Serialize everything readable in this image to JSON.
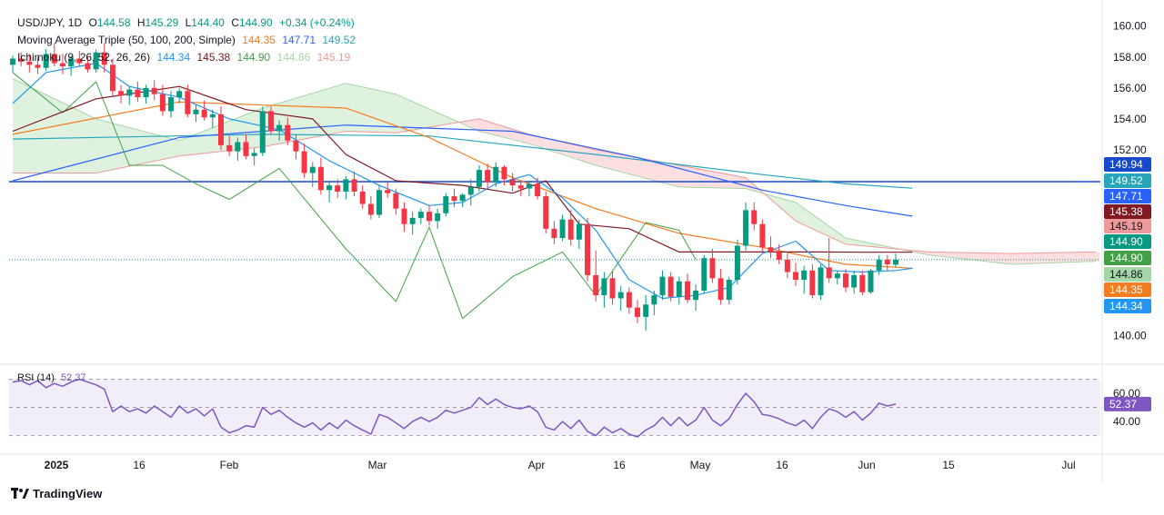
{
  "legend": {
    "symbol": "USD/JPY, 1D",
    "o_label": "O",
    "o_value": "144.58",
    "h_label": "H",
    "h_value": "145.29",
    "l_label": "L",
    "l_value": "144.40",
    "c_label": "C",
    "c_value": "144.90",
    "change": "+0.34 (+0.24%)",
    "ma_label": "Moving Average Triple (50, 100, 200, Simple)",
    "ma_values": [
      "144.35",
      "147.71",
      "149.52"
    ],
    "ichi_label": "Ichimoku (9, 26, 52, 26, 26)",
    "ichi_values": [
      "144.34",
      "145.38",
      "144.90",
      "144.86",
      "145.19"
    ],
    "rsi_label": "RSI (14)",
    "rsi_value": "52.37"
  },
  "colors": {
    "up": "#089981",
    "down": "#F23645",
    "ma50": "#F57C1F",
    "ma100": "#2962FF",
    "ma200": "#26A6BA",
    "tenkan": "#2196F3",
    "kijun": "#801922",
    "chikou": "#43A047",
    "span_a": "#A5D6A7",
    "span_b": "#EF9A9A",
    "hline": "#1848CC",
    "rsi": "#7E57C2"
  },
  "brand": "TradingView",
  "chart_data": {
    "type": "candlestick",
    "title": "USD/JPY, 1D",
    "price_axis": {
      "ylim": [
        138.2,
        161.1
      ],
      "ticks": [
        "160.00",
        "158.00",
        "156.00",
        "154.00",
        "152.00",
        "144.00",
        "140.00"
      ]
    },
    "x_axis": {
      "labels": [
        "2025",
        "16",
        "Feb",
        "Mar",
        "Apr",
        "16",
        "May",
        "16",
        "Jun",
        "15",
        "Jul"
      ]
    },
    "horizontal_line": 149.94,
    "last_close": 144.9,
    "price_badges": [
      {
        "value": "149.94",
        "color": "#1848CC"
      },
      {
        "value": "149.52",
        "color": "#26A6BA"
      },
      {
        "value": "147.71",
        "color": "#2962FF"
      },
      {
        "value": "145.38",
        "color": "#801922"
      },
      {
        "value": "145.19",
        "color": "#EF9A9A"
      },
      {
        "value": "144.90",
        "color": "#089981"
      },
      {
        "value": "144.90",
        "color": "#43A047"
      },
      {
        "value": "144.86",
        "color": "#A5D6A7"
      },
      {
        "value": "144.35",
        "color": "#F57C1F"
      },
      {
        "value": "144.34",
        "color": "#2196F3"
      }
    ],
    "candles": [
      [
        157.5,
        158.1,
        157.0,
        157.9
      ],
      [
        157.9,
        158.3,
        157.4,
        157.7
      ],
      [
        157.7,
        158.2,
        157.0,
        157.5
      ],
      [
        157.5,
        158.0,
        156.9,
        157.3
      ],
      [
        157.3,
        158.5,
        157.1,
        158.2
      ],
      [
        158.2,
        158.9,
        157.4,
        157.6
      ],
      [
        157.6,
        158.2,
        156.9,
        157.4
      ],
      [
        157.4,
        158.1,
        156.8,
        157.9
      ],
      [
        157.9,
        158.4,
        157.4,
        157.6
      ],
      [
        157.6,
        158.0,
        157.0,
        157.2
      ],
      [
        157.2,
        158.5,
        157.0,
        158.3
      ],
      [
        158.3,
        158.9,
        157.0,
        157.5
      ],
      [
        157.5,
        157.9,
        155.5,
        155.8
      ],
      [
        155.8,
        156.2,
        155.0,
        155.5
      ],
      [
        155.5,
        156.1,
        154.9,
        155.9
      ],
      [
        155.9,
        156.4,
        155.1,
        155.4
      ],
      [
        155.4,
        156.2,
        155.0,
        156.0
      ],
      [
        156.0,
        156.5,
        155.2,
        155.6
      ],
      [
        155.6,
        156.2,
        154.2,
        154.5
      ],
      [
        154.5,
        155.8,
        154.1,
        155.4
      ],
      [
        155.4,
        156.0,
        155.0,
        155.8
      ],
      [
        155.8,
        156.2,
        154.1,
        154.3
      ],
      [
        154.3,
        154.9,
        153.8,
        154.6
      ],
      [
        154.6,
        155.2,
        153.9,
        154.1
      ],
      [
        154.1,
        154.6,
        153.4,
        154.3
      ],
      [
        154.3,
        154.8,
        152.0,
        152.3
      ],
      [
        152.3,
        152.9,
        151.6,
        151.9
      ],
      [
        151.9,
        152.8,
        151.3,
        152.5
      ],
      [
        152.5,
        153.0,
        151.4,
        151.6
      ],
      [
        151.6,
        152.1,
        151.0,
        151.8
      ],
      [
        151.8,
        154.8,
        151.6,
        154.5
      ],
      [
        154.5,
        154.8,
        153.0,
        153.2
      ],
      [
        153.2,
        153.9,
        152.6,
        153.6
      ],
      [
        153.6,
        154.1,
        152.3,
        152.6
      ],
      [
        152.6,
        153.0,
        151.4,
        151.9
      ],
      [
        151.9,
        152.4,
        150.2,
        150.5
      ],
      [
        150.5,
        151.2,
        149.6,
        150.9
      ],
      [
        150.9,
        151.5,
        149.1,
        149.4
      ],
      [
        149.4,
        150.0,
        148.6,
        149.7
      ],
      [
        149.7,
        150.1,
        148.9,
        149.3
      ],
      [
        149.3,
        150.3,
        148.8,
        150.1
      ],
      [
        150.1,
        150.6,
        149.0,
        149.3
      ],
      [
        149.3,
        149.7,
        148.2,
        148.5
      ],
      [
        148.5,
        149.0,
        147.5,
        147.8
      ],
      [
        147.8,
        149.7,
        147.6,
        149.4
      ],
      [
        149.4,
        149.9,
        148.9,
        149.2
      ],
      [
        149.2,
        149.5,
        147.8,
        148.2
      ],
      [
        148.2,
        148.6,
        146.7,
        147.2
      ],
      [
        147.2,
        148.0,
        146.5,
        147.6
      ],
      [
        147.6,
        148.2,
        147.2,
        148.0
      ],
      [
        148.0,
        148.4,
        147.1,
        147.4
      ],
      [
        147.4,
        148.2,
        146.9,
        147.9
      ],
      [
        147.9,
        149.2,
        147.7,
        149.0
      ],
      [
        149.0,
        149.5,
        148.3,
        148.7
      ],
      [
        148.7,
        149.2,
        148.3,
        149.1
      ],
      [
        149.1,
        150.1,
        148.4,
        149.6
      ],
      [
        149.6,
        151.0,
        149.3,
        150.7
      ],
      [
        150.7,
        151.1,
        149.5,
        149.9
      ],
      [
        149.9,
        151.2,
        149.6,
        150.9
      ],
      [
        150.9,
        151.0,
        149.7,
        150.1
      ],
      [
        150.1,
        150.5,
        149.3,
        149.7
      ],
      [
        149.7,
        150.0,
        149.0,
        149.5
      ],
      [
        149.5,
        150.0,
        149.0,
        149.8
      ],
      [
        149.8,
        150.2,
        148.8,
        149.0
      ],
      [
        149.0,
        149.3,
        146.6,
        146.9
      ],
      [
        146.9,
        147.4,
        145.9,
        146.3
      ],
      [
        146.3,
        147.8,
        146.1,
        147.5
      ],
      [
        147.5,
        148.1,
        145.8,
        146.2
      ],
      [
        146.2,
        147.5,
        145.6,
        147.2
      ],
      [
        147.2,
        147.6,
        143.5,
        143.9
      ],
      [
        143.9,
        145.5,
        142.2,
        142.6
      ],
      [
        142.6,
        144.1,
        141.8,
        143.7
      ],
      [
        143.7,
        144.2,
        142.0,
        142.4
      ],
      [
        142.4,
        143.2,
        141.6,
        142.8
      ],
      [
        142.8,
        143.1,
        141.4,
        141.8
      ],
      [
        141.8,
        142.3,
        140.8,
        141.2
      ],
      [
        141.2,
        142.6,
        140.3,
        142.0
      ],
      [
        142.0,
        142.9,
        141.3,
        142.6
      ],
      [
        142.6,
        144.2,
        142.3,
        143.8
      ],
      [
        143.8,
        144.1,
        142.2,
        142.5
      ],
      [
        142.5,
        143.8,
        142.0,
        143.5
      ],
      [
        143.5,
        144.0,
        142.1,
        142.3
      ],
      [
        142.3,
        143.3,
        141.6,
        142.9
      ],
      [
        142.9,
        145.2,
        142.7,
        145.0
      ],
      [
        145.0,
        145.6,
        143.4,
        143.7
      ],
      [
        143.7,
        144.3,
        142.0,
        142.3
      ],
      [
        142.3,
        143.8,
        142.0,
        143.6
      ],
      [
        143.6,
        146.2,
        143.3,
        145.8
      ],
      [
        145.8,
        148.6,
        145.5,
        148.1
      ],
      [
        148.1,
        148.6,
        146.8,
        147.2
      ],
      [
        147.2,
        147.5,
        145.4,
        145.7
      ],
      [
        145.7,
        146.4,
        145.0,
        145.4
      ],
      [
        145.4,
        145.9,
        144.6,
        144.9
      ],
      [
        144.9,
        145.3,
        143.7,
        144.1
      ],
      [
        144.1,
        144.7,
        143.2,
        143.6
      ],
      [
        143.6,
        144.5,
        142.7,
        144.2
      ],
      [
        144.2,
        144.6,
        142.4,
        142.6
      ],
      [
        142.6,
        144.6,
        142.3,
        144.4
      ],
      [
        144.4,
        146.3,
        143.4,
        143.7
      ],
      [
        143.7,
        144.2,
        143.3,
        144.0
      ],
      [
        144.0,
        144.3,
        142.8,
        143.1
      ],
      [
        143.1,
        144.2,
        142.7,
        143.9
      ],
      [
        143.9,
        144.2,
        142.6,
        142.8
      ],
      [
        142.8,
        144.3,
        142.7,
        144.2
      ],
      [
        144.2,
        145.2,
        143.9,
        144.9
      ],
      [
        144.9,
        145.2,
        144.2,
        144.6
      ],
      [
        144.58,
        145.29,
        144.4,
        144.9
      ]
    ],
    "ma50": [
      [
        0,
        153.0
      ],
      [
        20,
        155.1
      ],
      [
        40,
        154.7
      ],
      [
        50,
        152.8
      ],
      [
        60,
        150.2
      ],
      [
        70,
        148.2
      ],
      [
        80,
        146.6
      ],
      [
        90,
        145.7
      ],
      [
        100,
        144.6
      ],
      [
        108,
        144.35
      ]
    ],
    "ma100": [
      [
        0,
        150.0
      ],
      [
        20,
        152.8
      ],
      [
        40,
        153.6
      ],
      [
        60,
        153.2
      ],
      [
        75,
        151.5
      ],
      [
        90,
        149.4
      ],
      [
        100,
        148.4
      ],
      [
        108,
        147.71
      ]
    ],
    "ma200": [
      [
        0,
        152.7
      ],
      [
        30,
        153.0
      ],
      [
        50,
        152.9
      ],
      [
        70,
        151.7
      ],
      [
        90,
        150.4
      ],
      [
        100,
        149.8
      ],
      [
        108,
        149.52
      ]
    ],
    "tenkan": [
      [
        0,
        155.0
      ],
      [
        4,
        157.0
      ],
      [
        10,
        157.6
      ],
      [
        14,
        156.1
      ],
      [
        20,
        155.4
      ],
      [
        26,
        154.0
      ],
      [
        32,
        153.3
      ],
      [
        38,
        151.3
      ],
      [
        44,
        149.7
      ],
      [
        50,
        148.4
      ],
      [
        54,
        148.6
      ],
      [
        58,
        149.8
      ],
      [
        62,
        150.4
      ],
      [
        66,
        148.9
      ],
      [
        70,
        146.8
      ],
      [
        74,
        143.6
      ],
      [
        78,
        142.4
      ],
      [
        82,
        142.6
      ],
      [
        86,
        143.1
      ],
      [
        90,
        145.3
      ],
      [
        94,
        146.1
      ],
      [
        98,
        144.2
      ],
      [
        102,
        144.1
      ],
      [
        106,
        144.2
      ],
      [
        108,
        144.34
      ]
    ],
    "kijun": [
      [
        0,
        153.2
      ],
      [
        10,
        155.3
      ],
      [
        20,
        156.1
      ],
      [
        28,
        154.6
      ],
      [
        36,
        154.0
      ],
      [
        40,
        151.7
      ],
      [
        46,
        150.0
      ],
      [
        54,
        149.7
      ],
      [
        60,
        149.2
      ],
      [
        64,
        150.0
      ],
      [
        68,
        147.2
      ],
      [
        74,
        146.9
      ],
      [
        80,
        145.4
      ],
      [
        86,
        145.4
      ],
      [
        92,
        145.4
      ],
      [
        96,
        145.4
      ],
      [
        102,
        145.38
      ],
      [
        108,
        145.38
      ]
    ],
    "chikou": [
      [
        0,
        157.0
      ],
      [
        6,
        154.4
      ],
      [
        10,
        156.4
      ],
      [
        14,
        151.0
      ],
      [
        18,
        151.0
      ],
      [
        22,
        149.8
      ],
      [
        26,
        148.8
      ],
      [
        32,
        150.8
      ],
      [
        40,
        145.6
      ],
      [
        46,
        142.2
      ],
      [
        50,
        147.0
      ],
      [
        54,
        141.1
      ],
      [
        60,
        143.8
      ],
      [
        66,
        145.4
      ],
      [
        70,
        142.6
      ],
      [
        76,
        147.3
      ],
      [
        80,
        146.8
      ],
      [
        82,
        144.9
      ]
    ],
    "span_a": [
      [
        0,
        156.6
      ],
      [
        10,
        154.0
      ],
      [
        20,
        152.6
      ],
      [
        30,
        154.7
      ],
      [
        40,
        156.3
      ],
      [
        46,
        155.6
      ],
      [
        56,
        153.2
      ],
      [
        62,
        152.4
      ],
      [
        70,
        151.0
      ],
      [
        80,
        149.6
      ],
      [
        88,
        149.5
      ],
      [
        94,
        148.6
      ],
      [
        100,
        146.3
      ],
      [
        110,
        145.2
      ],
      [
        120,
        144.6
      ],
      [
        130,
        144.8
      ],
      [
        140,
        145.0
      ]
    ],
    "span_b": [
      [
        0,
        150.5
      ],
      [
        10,
        150.5
      ],
      [
        20,
        151.6
      ],
      [
        30,
        152.2
      ],
      [
        40,
        153.2
      ],
      [
        46,
        153.1
      ],
      [
        56,
        154.0
      ],
      [
        62,
        153.0
      ],
      [
        70,
        152.0
      ],
      [
        80,
        151.0
      ],
      [
        88,
        150.2
      ],
      [
        94,
        147.4
      ],
      [
        100,
        145.9
      ],
      [
        110,
        145.4
      ],
      [
        120,
        145.3
      ],
      [
        130,
        145.4
      ],
      [
        140,
        145.3
      ]
    ],
    "rsi": {
      "ylim": [
        22,
        80
      ],
      "ticks": [
        "60.00",
        "40.00"
      ],
      "levels": [
        70,
        30
      ],
      "values": [
        68,
        69,
        66,
        69,
        64,
        67,
        65,
        68,
        70,
        68,
        66,
        63,
        47,
        51,
        47,
        49,
        46,
        51,
        47,
        43,
        51,
        46,
        49,
        44,
        49,
        36,
        32,
        34,
        37,
        36,
        50,
        45,
        48,
        43,
        39,
        36,
        39,
        34,
        39,
        35,
        41,
        37,
        34,
        31,
        45,
        43,
        39,
        35,
        40,
        43,
        40,
        43,
        48,
        46,
        48,
        50,
        57,
        52,
        56,
        52,
        50,
        49,
        51,
        47,
        36,
        34,
        40,
        35,
        41,
        33,
        30,
        36,
        32,
        35,
        31,
        29,
        34,
        37,
        43,
        37,
        43,
        37,
        41,
        50,
        41,
        37,
        42,
        52,
        60,
        54,
        45,
        44,
        42,
        39,
        37,
        41,
        35,
        43,
        49,
        47,
        43,
        47,
        41,
        46,
        53,
        51,
        52.37
      ]
    }
  }
}
